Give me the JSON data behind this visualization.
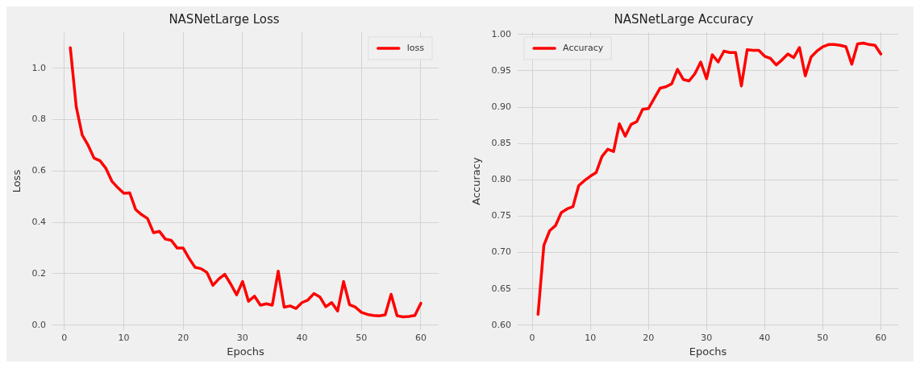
{
  "chart_data": [
    {
      "type": "line",
      "title": "NASNetLarge Loss",
      "xlabel": "Epochs",
      "ylabel": "Loss",
      "legend": "top right",
      "grid": true,
      "marker": "none",
      "line_style": "solid",
      "xlim": [
        -2,
        63
      ],
      "xticks": [
        0,
        10,
        20,
        30,
        40,
        50,
        60
      ],
      "ylim": [
        -0.02,
        1.14
      ],
      "yticks": [
        {
          "value": 0,
          "label": "0.0"
        },
        {
          "value": 0.2,
          "label": "0.2"
        },
        {
          "value": 0.4,
          "label": "0.4"
        },
        {
          "value": 0.6,
          "label": "0.6"
        },
        {
          "value": 0.8,
          "label": "0.8"
        },
        {
          "value": 1,
          "label": "1.0"
        }
      ],
      "x": [
        1,
        2,
        3,
        4,
        5,
        6,
        7,
        8,
        9,
        10,
        11,
        12,
        13,
        14,
        15,
        16,
        17,
        18,
        19,
        20,
        21,
        22,
        23,
        24,
        25,
        26,
        27,
        28,
        29,
        30,
        31,
        32,
        33,
        34,
        35,
        36,
        37,
        38,
        39,
        40,
        41,
        42,
        43,
        44,
        45,
        46,
        47,
        48,
        49,
        50,
        51,
        52,
        53,
        54,
        55,
        56,
        57,
        58,
        59,
        60
      ],
      "series": [
        {
          "name": "loss",
          "color": "#ff0000",
          "values": [
            1.08,
            0.85,
            0.74,
            0.7,
            0.65,
            0.64,
            0.61,
            0.56,
            0.535,
            0.513,
            0.515,
            0.45,
            0.43,
            0.415,
            0.36,
            0.365,
            0.335,
            0.33,
            0.3,
            0.3,
            0.26,
            0.225,
            0.22,
            0.205,
            0.155,
            0.18,
            0.198,
            0.16,
            0.118,
            0.17,
            0.093,
            0.113,
            0.078,
            0.083,
            0.078,
            0.21,
            0.07,
            0.075,
            0.065,
            0.088,
            0.098,
            0.123,
            0.11,
            0.072,
            0.088,
            0.055,
            0.17,
            0.08,
            0.07,
            0.05,
            0.042,
            0.038,
            0.036,
            0.04,
            0.12,
            0.037,
            0.032,
            0.034,
            0.038,
            0.085
          ]
        }
      ]
    },
    {
      "type": "line",
      "title": "NASNetLarge Accuracy",
      "xlabel": "Epochs",
      "ylabel": "Accuracy",
      "legend": "top left",
      "grid": true,
      "marker": "none",
      "line_style": "solid",
      "xlim": [
        -2.5,
        63
      ],
      "xticks": [
        0,
        10,
        20,
        30,
        40,
        50,
        60
      ],
      "ylim": [
        0.593,
        1.003
      ],
      "yticks": [
        {
          "value": 0.6,
          "label": "0.60"
        },
        {
          "value": 0.65,
          "label": "0.65"
        },
        {
          "value": 0.7,
          "label": "0.70"
        },
        {
          "value": 0.75,
          "label": "0.75"
        },
        {
          "value": 0.8,
          "label": "0.80"
        },
        {
          "value": 0.85,
          "label": "0.85"
        },
        {
          "value": 0.9,
          "label": "0.90"
        },
        {
          "value": 0.95,
          "label": "0.95"
        },
        {
          "value": 1,
          "label": "1.00"
        }
      ],
      "x": [
        1,
        2,
        3,
        4,
        5,
        6,
        7,
        8,
        9,
        10,
        11,
        12,
        13,
        14,
        15,
        16,
        17,
        18,
        19,
        20,
        21,
        22,
        23,
        24,
        25,
        26,
        27,
        28,
        29,
        30,
        31,
        32,
        33,
        34,
        35,
        36,
        37,
        38,
        39,
        40,
        41,
        42,
        43,
        44,
        45,
        46,
        47,
        48,
        49,
        50,
        51,
        52,
        53,
        54,
        55,
        56,
        57,
        58,
        59,
        60
      ],
      "series": [
        {
          "name": "Accuracy",
          "color": "#ff0000",
          "values": [
            0.615,
            0.71,
            0.73,
            0.737,
            0.755,
            0.76,
            0.763,
            0.792,
            0.799,
            0.805,
            0.81,
            0.832,
            0.842,
            0.839,
            0.877,
            0.86,
            0.876,
            0.88,
            0.897,
            0.898,
            0.912,
            0.926,
            0.928,
            0.932,
            0.952,
            0.938,
            0.936,
            0.946,
            0.962,
            0.939,
            0.972,
            0.962,
            0.977,
            0.975,
            0.975,
            0.929,
            0.979,
            0.978,
            0.978,
            0.97,
            0.967,
            0.958,
            0.965,
            0.973,
            0.968,
            0.982,
            0.943,
            0.969,
            0.977,
            0.983,
            0.986,
            0.986,
            0.985,
            0.983,
            0.959,
            0.987,
            0.988,
            0.986,
            0.985,
            0.973
          ]
        }
      ]
    }
  ]
}
